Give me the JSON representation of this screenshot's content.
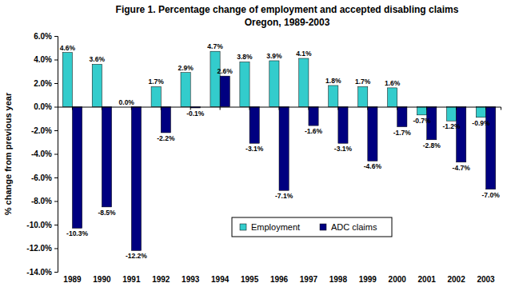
{
  "chart_data": {
    "type": "bar",
    "title": "Figure 1. Percentage change of employment and accepted disabling claims",
    "subtitle": "Oregon, 1989-2003",
    "y_label": "% change from previous year",
    "categories": [
      "1989",
      "1990",
      "1991",
      "1992",
      "1993",
      "1994",
      "1995",
      "1996",
      "1997",
      "1998",
      "1999",
      "2000",
      "2001",
      "2002",
      "2003"
    ],
    "series": [
      {
        "name": "Employment",
        "color": "#33cccc",
        "values": [
          4.6,
          3.6,
          0.0,
          1.7,
          2.9,
          4.7,
          3.8,
          3.9,
          4.1,
          1.8,
          1.7,
          1.6,
          -0.7,
          -1.2,
          -0.9
        ],
        "value_labels": [
          "4.6%",
          "3.6%",
          "0.0%",
          "1.7%",
          "2.9%",
          "4.7%",
          "3.8%",
          "3.9%",
          "4.1%",
          "1.8%",
          "1.7%",
          "1.6%",
          "-0.7%",
          "-1.2%",
          "-0.9%"
        ]
      },
      {
        "name": "ADC claims",
        "color": "#000080",
        "values": [
          -10.3,
          -8.5,
          -12.2,
          -2.2,
          -0.1,
          2.6,
          -3.1,
          -7.1,
          -1.6,
          -3.1,
          -4.6,
          -1.7,
          -2.8,
          -4.7,
          -7.0
        ],
        "value_labels": [
          "-10.3%",
          "-8.5%",
          "-12.2%",
          "-2.2%",
          "-0.1%",
          "2.6%",
          "-3.1%",
          "-7.1%",
          "-1.6%",
          "-3.1%",
          "-4.6%",
          "-1.7%",
          "-2.8%",
          "-4.7%",
          "-7.0%"
        ]
      }
    ],
    "ylim": [
      -14,
      6
    ],
    "yticks": [
      {
        "value": 6,
        "label": "6.0%"
      },
      {
        "value": 4,
        "label": "4.0%"
      },
      {
        "value": 2,
        "label": "2.0%"
      },
      {
        "value": 0,
        "label": "0.0%"
      },
      {
        "value": -2,
        "label": "-2.0%"
      },
      {
        "value": -4,
        "label": "-4.0%"
      },
      {
        "value": -6,
        "label": "-6.0%"
      },
      {
        "value": -8,
        "label": "-8.0%"
      },
      {
        "value": -10,
        "label": "-10.0%"
      },
      {
        "value": -12,
        "label": "-12.0%"
      },
      {
        "value": -14,
        "label": "-14.0%"
      }
    ],
    "grid": false,
    "legend": "bottom",
    "data_labels": true
  }
}
